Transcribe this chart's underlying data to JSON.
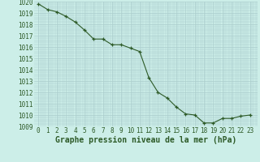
{
  "x": [
    0,
    1,
    2,
    3,
    4,
    5,
    6,
    7,
    8,
    9,
    10,
    11,
    12,
    13,
    14,
    15,
    16,
    17,
    18,
    19,
    20,
    21,
    22,
    23
  ],
  "y": [
    1019.8,
    1019.3,
    1019.1,
    1018.7,
    1018.2,
    1017.5,
    1016.7,
    1016.7,
    1016.2,
    1016.2,
    1015.9,
    1015.6,
    1013.3,
    1012.0,
    1011.5,
    1010.7,
    1010.1,
    1010.0,
    1009.3,
    1009.3,
    1009.7,
    1009.7,
    1009.9,
    1010.0
  ],
  "ylim": [
    1009,
    1020
  ],
  "xlim": [
    -0.5,
    23.5
  ],
  "yticks": [
    1009,
    1010,
    1011,
    1012,
    1013,
    1014,
    1015,
    1016,
    1017,
    1018,
    1019,
    1020
  ],
  "xticks": [
    0,
    1,
    2,
    3,
    4,
    5,
    6,
    7,
    8,
    9,
    10,
    11,
    12,
    13,
    14,
    15,
    16,
    17,
    18,
    19,
    20,
    21,
    22,
    23
  ],
  "xlabel": "Graphe pression niveau de la mer (hPa)",
  "line_color": "#2d5a27",
  "marker_color": "#2d5a27",
  "bg_color": "#cceee8",
  "grid_color": "#aacccc",
  "tick_label_color": "#2d5a27",
  "xlabel_color": "#2d5a27",
  "xlabel_fontsize": 7,
  "tick_fontsize": 5.5,
  "ytick_fontsize": 5.5
}
